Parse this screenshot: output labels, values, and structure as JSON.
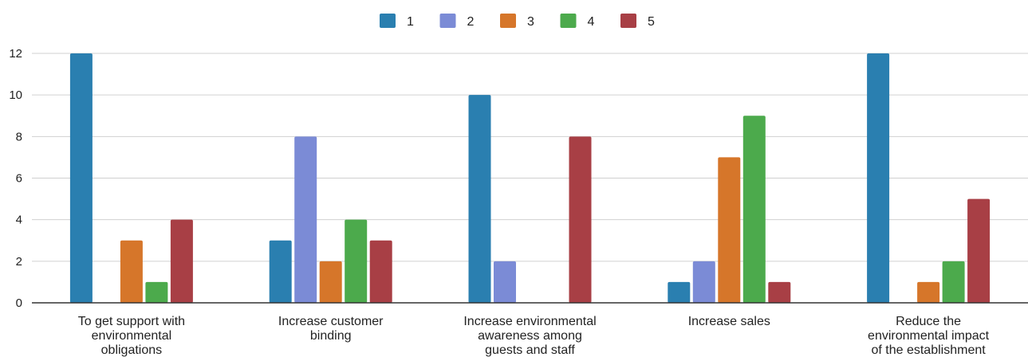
{
  "chart_data": {
    "type": "bar",
    "title": "",
    "xlabel": "",
    "ylabel": "",
    "ylim": [
      0,
      12
    ],
    "yticks": [
      0,
      2,
      4,
      6,
      8,
      10,
      12
    ],
    "grid": true,
    "legend_position": "top",
    "categories": [
      [
        "To get support with",
        "environmental",
        "obligations"
      ],
      [
        "Increase customer",
        "binding"
      ],
      [
        "Increase environmental",
        "awareness among",
        "guests and staff"
      ],
      [
        "Increase sales"
      ],
      [
        "Reduce the",
        "environmental impact",
        "of the establishment"
      ]
    ],
    "series": [
      {
        "name": "1",
        "color": "#2a7fb0",
        "values": [
          12,
          3,
          10,
          1,
          12
        ]
      },
      {
        "name": "2",
        "color": "#7b8bd6",
        "values": [
          0,
          8,
          2,
          2,
          0
        ]
      },
      {
        "name": "3",
        "color": "#d6762a",
        "values": [
          3,
          2,
          0,
          7,
          1
        ]
      },
      {
        "name": "4",
        "color": "#4caa4c",
        "values": [
          1,
          4,
          0,
          9,
          2
        ]
      },
      {
        "name": "5",
        "color": "#a83f45",
        "values": [
          4,
          3,
          8,
          1,
          5
        ]
      }
    ]
  }
}
